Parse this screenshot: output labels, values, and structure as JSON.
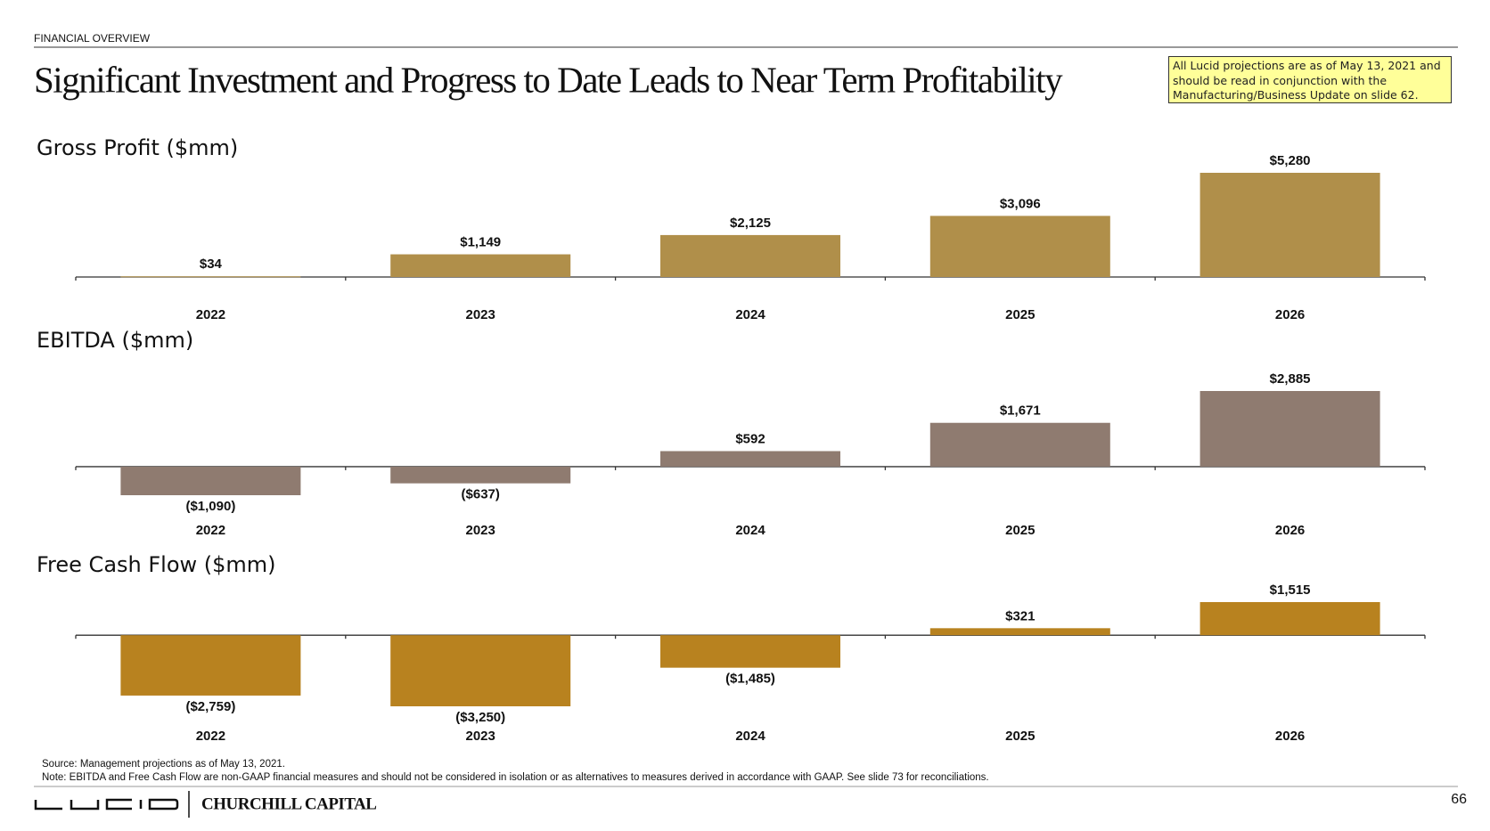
{
  "header": {
    "section": "FINANCIAL OVERVIEW",
    "title": "Significant Investment and Progress to Date Leads to Near Term Profitability",
    "note": "All Lucid projections are as of May 13, 2021 and should be read in conjunction with the Manufacturing/Business Update on slide 62."
  },
  "chart_data": [
    {
      "type": "bar",
      "title": "Gross Profit ($mm)",
      "categories": [
        "2022",
        "2023",
        "2024",
        "2025",
        "2026"
      ],
      "values": [
        34,
        1149,
        2125,
        3096,
        5280
      ],
      "value_labels": [
        "$34",
        "$1,149",
        "$2,125",
        "$3,096",
        "$5,280"
      ],
      "color": "#b08f4a"
    },
    {
      "type": "bar",
      "title": "EBITDA ($mm)",
      "categories": [
        "2022",
        "2023",
        "2024",
        "2025",
        "2026"
      ],
      "values": [
        -1090,
        -637,
        592,
        1671,
        2885
      ],
      "value_labels": [
        "($1,090)",
        "($637)",
        "$592",
        "$1,671",
        "$2,885"
      ],
      "color": "#8f7b70"
    },
    {
      "type": "bar",
      "title": "Free Cash Flow ($mm)",
      "categories": [
        "2022",
        "2023",
        "2024",
        "2025",
        "2026"
      ],
      "values": [
        -2759,
        -3250,
        -1485,
        321,
        1515
      ],
      "value_labels": [
        "($2,759)",
        "($3,250)",
        "($1,485)",
        "$321",
        "$1,515"
      ],
      "color": "#b8821f"
    }
  ],
  "footer": {
    "source": "Source: Management projections as of May 13, 2021.",
    "disclaimer": "Note: EBITDA and Free Cash Flow are non-GAAP financial measures and should not be considered in isolation or as alternatives to measures derived in accordance with GAAP. See slide 73 for reconciliations.",
    "brand": "CHURCHILL CAPITAL",
    "page_number": "66"
  }
}
